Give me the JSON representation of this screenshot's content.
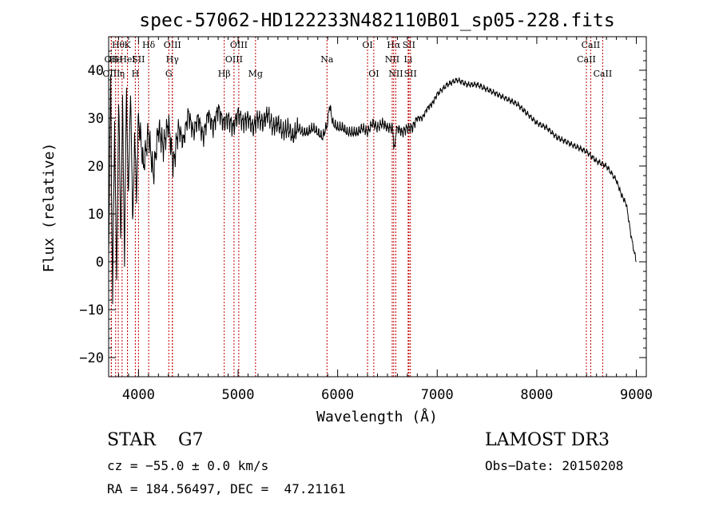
{
  "chart_data": {
    "type": "line",
    "title": "spec-57062-HD122233N482110B01_sp05-228.fits",
    "xlabel": "Wavelength (Å)",
    "ylabel": "Flux (relative)",
    "xlim": [
      3700,
      9100
    ],
    "ylim": [
      -24,
      47
    ],
    "xticks": [
      4000,
      5000,
      6000,
      7000,
      8000,
      9000
    ],
    "yticks": [
      -20,
      -10,
      0,
      10,
      20,
      30,
      40
    ],
    "grid": false,
    "series": [
      {
        "name": "flux",
        "x": [
          3700,
          3720,
          3740,
          3760,
          3780,
          3800,
          3820,
          3840,
          3860,
          3880,
          3900,
          3920,
          3940,
          3960,
          3980,
          4000,
          4050,
          4100,
          4150,
          4200,
          4250,
          4300,
          4350,
          4400,
          4450,
          4500,
          4550,
          4600,
          4650,
          4700,
          4750,
          4800,
          4850,
          4900,
          4950,
          5000,
          5050,
          5100,
          5150,
          5200,
          5250,
          5300,
          5350,
          5400,
          5450,
          5500,
          5550,
          5600,
          5650,
          5700,
          5750,
          5800,
          5850,
          5900,
          5920,
          5950,
          6000,
          6050,
          6100,
          6150,
          6200,
          6250,
          6300,
          6350,
          6400,
          6450,
          6500,
          6550,
          6563,
          6600,
          6650,
          6700,
          6750,
          6800,
          6850,
          6900,
          6950,
          7000,
          7100,
          7200,
          7300,
          7400,
          7500,
          7600,
          7700,
          7800,
          7900,
          8000,
          8100,
          8200,
          8300,
          8400,
          8500,
          8600,
          8700,
          8800,
          8850,
          8900,
          8950,
          8990,
          9000
        ],
        "y": [
          2,
          38,
          -8,
          30,
          -6,
          35,
          5,
          32,
          2,
          36,
          12,
          38,
          8,
          25,
          15,
          30,
          20,
          27,
          18,
          28,
          24,
          29,
          20,
          28,
          25,
          31,
          27,
          30,
          26,
          31,
          28,
          32,
          29,
          30,
          28,
          31,
          29,
          30,
          28,
          30,
          29,
          31,
          28,
          29,
          27,
          28,
          26,
          28,
          27,
          27,
          28,
          27,
          26,
          29,
          33,
          29,
          28,
          28,
          27,
          27,
          27,
          28,
          27,
          29,
          28,
          29,
          28,
          28,
          24,
          28,
          27,
          28,
          28,
          30,
          30,
          32,
          33,
          35,
          37,
          38,
          37,
          37,
          36,
          35,
          34,
          33,
          31,
          29,
          28,
          26,
          25,
          24,
          23,
          21,
          20,
          17,
          14,
          12,
          5,
          1,
          0
        ]
      }
    ],
    "line_markers": [
      {
        "label": "Hθ",
        "x": 3797,
        "row": 1
      },
      {
        "label": "OII",
        "x": 3727,
        "row": 2
      },
      {
        "label": "OIII",
        "x": 3727,
        "row": 3
      },
      {
        "label": "He",
        "x": 3770,
        "row": 2
      },
      {
        "label": "η",
        "x": 3835,
        "row": 3
      },
      {
        "label": "K",
        "x": 3889,
        "row": 1
      },
      {
        "label": "HeI",
        "x": 3889,
        "row": 2
      },
      {
        "label": "SII",
        "x": 4000,
        "row": 2
      },
      {
        "label": "H",
        "x": 3968,
        "row": 3
      },
      {
        "label": "Hδ",
        "x": 4102,
        "row": 1
      },
      {
        "label": "OIII",
        "x": 4340,
        "row": 1
      },
      {
        "label": "Hγ",
        "x": 4340,
        "row": 2
      },
      {
        "label": "G",
        "x": 4304,
        "row": 3
      },
      {
        "label": "Hβ",
        "x": 4861,
        "row": 3
      },
      {
        "label": "OIII",
        "x": 5007,
        "row": 1
      },
      {
        "label": "OIII",
        "x": 4959,
        "row": 2
      },
      {
        "label": "Mg",
        "x": 5175,
        "row": 3
      },
      {
        "label": "Na",
        "x": 5893,
        "row": 2
      },
      {
        "label": "OI",
        "x": 6300,
        "row": 1
      },
      {
        "label": "OI",
        "x": 6363,
        "row": 3
      },
      {
        "label": "Hα",
        "x": 6563,
        "row": 1
      },
      {
        "label": "SII",
        "x": 6716,
        "row": 1
      },
      {
        "label": "NII",
        "x": 6548,
        "row": 2
      },
      {
        "label": "Li",
        "x": 6708,
        "row": 2
      },
      {
        "label": "NII",
        "x": 6584,
        "row": 3
      },
      {
        "label": "SII",
        "x": 6731,
        "row": 3
      },
      {
        "label": "CaII",
        "x": 8542,
        "row": 1
      },
      {
        "label": "CaII",
        "x": 8498,
        "row": 2
      },
      {
        "label": "CaII",
        "x": 8662,
        "row": 3
      }
    ]
  },
  "info": {
    "object": "STAR    G7",
    "survey": "LAMOST DR3",
    "cz": "cz = −55.0 ± 0.0 km/s",
    "obs_date": "Obs−Date: 20150208",
    "coords": "RA = 184.56497, DEC =  47.21161"
  }
}
